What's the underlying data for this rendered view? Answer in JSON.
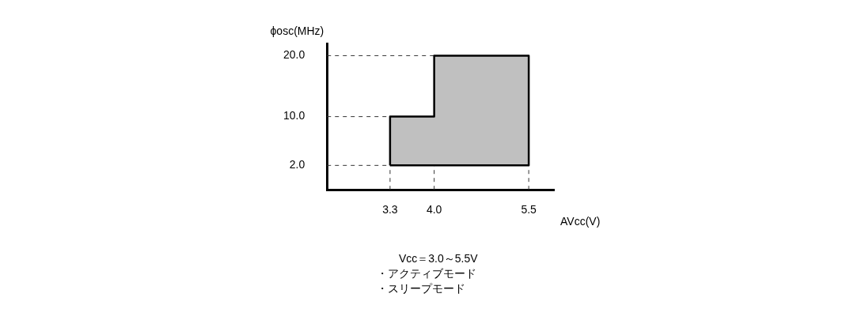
{
  "chart_data": {
    "type": "area",
    "ylabel": "ϕosc(MHz)",
    "xlabel": "AVcc(V)",
    "x": [
      3.3,
      3.3,
      4.0,
      4.0,
      5.5,
      5.5,
      3.3
    ],
    "series": [
      {
        "color": "#c0c0c0",
        "values": [
          2,
          10,
          10,
          20,
          20,
          2,
          2
        ]
      }
    ],
    "xlim": [
      2.3,
      5.9
    ],
    "ylim": [
      -2,
      22
    ],
    "xticks": [
      3.3,
      {
        "value": 4,
        "label": "4.0"
      },
      5.5
    ],
    "yticks": [
      {
        "value": 2,
        "label": "2.0"
      },
      {
        "value": 10,
        "label": "10.0"
      },
      {
        "value": 20,
        "label": "20.0"
      }
    ],
    "ref_lines": [
      {
        "axis": "y",
        "value": 2,
        "line_style": "dashed"
      },
      {
        "axis": "y",
        "value": 10,
        "line_style": "dashed"
      },
      {
        "axis": "y",
        "value": 20,
        "line_style": "dashed"
      },
      {
        "axis": "x",
        "value": 3.3,
        "line_style": "dashed"
      },
      {
        "axis": "x",
        "value": 4,
        "line_style": "dashed"
      },
      {
        "axis": "x",
        "value": 5.5,
        "line_style": "dashed"
      }
    ],
    "marker": "none",
    "grid": false,
    "legend": false,
    "annotations": [
      "Vcc＝3.0～5.5V",
      "・アクティブモード",
      "・スリープモード"
    ]
  }
}
